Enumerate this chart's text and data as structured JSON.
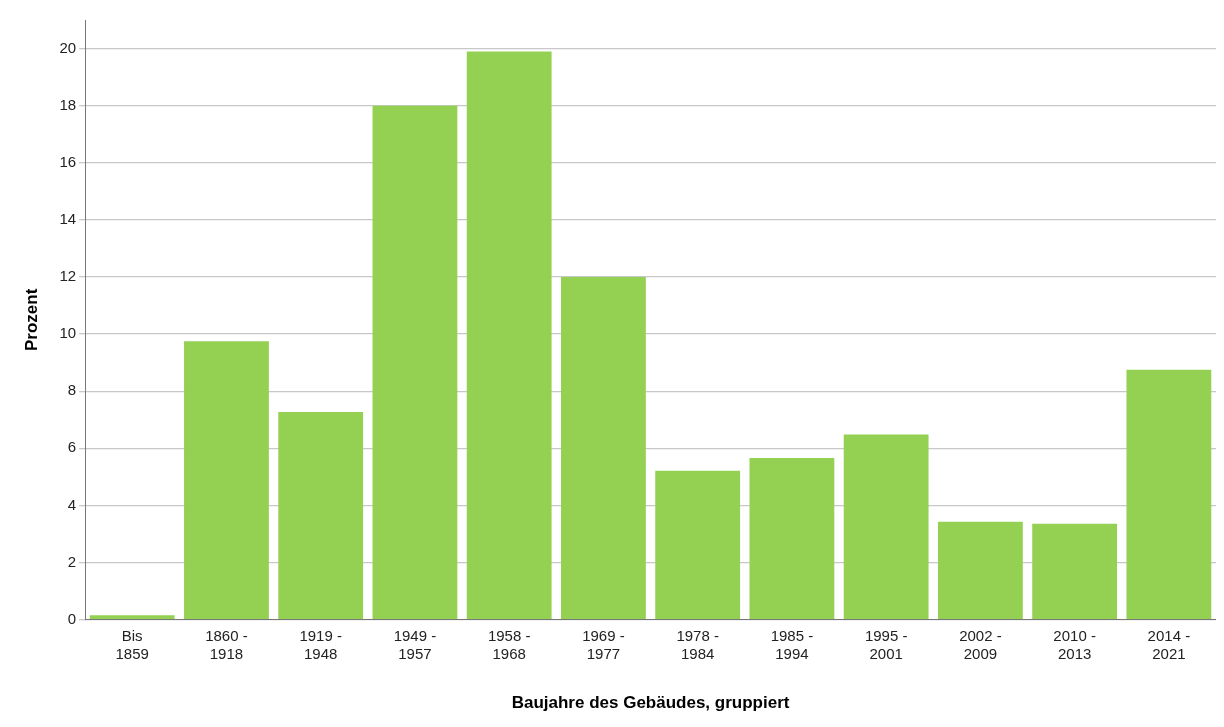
{
  "chart_data": {
    "type": "bar",
    "xlabel": "Baujahre des Gebäudes, gruppiert",
    "ylabel": "Prozent",
    "categories": [
      "Bis 1859",
      "1860 - 1918",
      "1919 - 1948",
      "1949 - 1957",
      "1958 - 1968",
      "1969 - 1977",
      "1978 - 1984",
      "1985 - 1994",
      "1995 - 2001",
      "2002 - 2009",
      "2010 - 2013",
      "2014 - 2021"
    ],
    "values": [
      0.15,
      9.75,
      7.27,
      18.0,
      19.9,
      12.0,
      5.21,
      5.66,
      6.48,
      3.43,
      3.36,
      8.75
    ],
    "color": "#94d153",
    "ylim": [
      0,
      21
    ],
    "yticks": [
      0,
      2,
      4,
      6,
      8,
      10,
      12,
      14,
      16,
      18,
      20
    ],
    "grid": "y",
    "legend": false
  }
}
